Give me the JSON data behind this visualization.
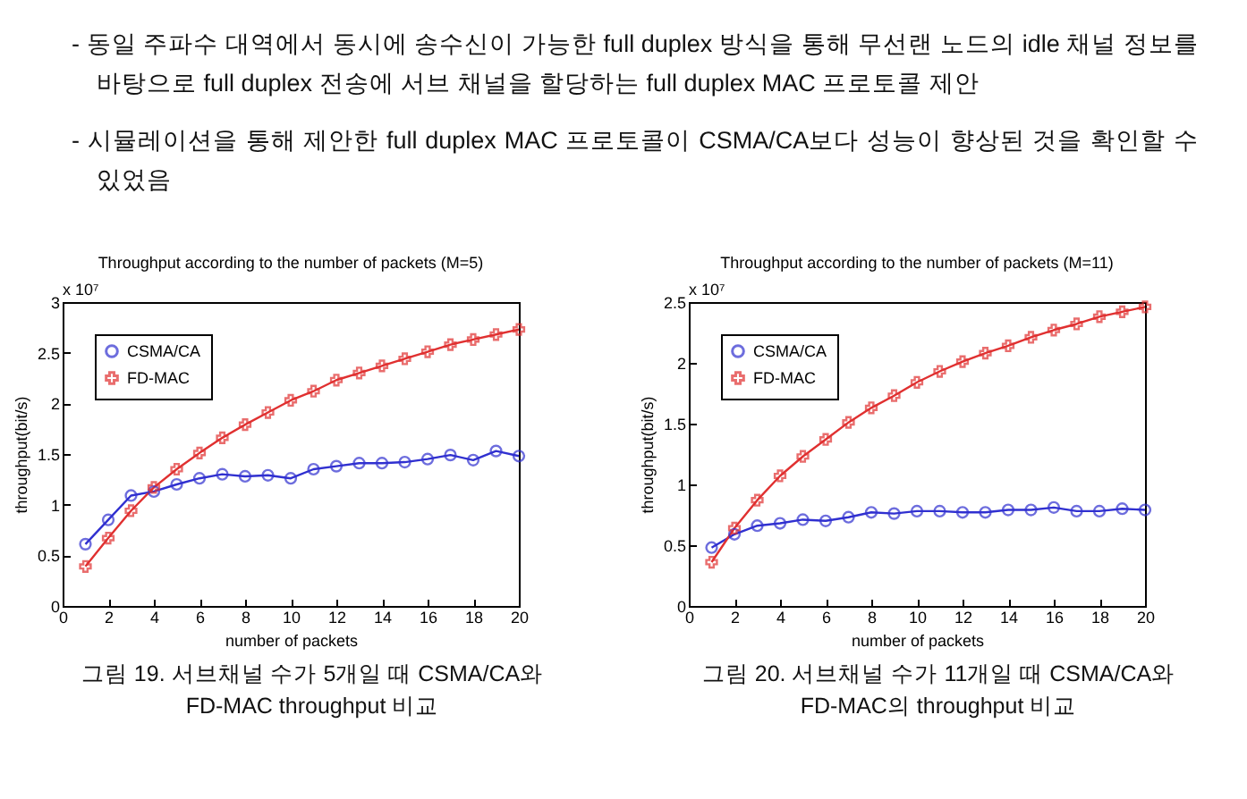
{
  "chart_data": [
    {
      "type": "line",
      "title": "Throughput according to the number of packets (M=5)",
      "xlabel": "number of packets",
      "ylabel": "throughput(bit/s)",
      "annotations": [
        "x 10⁷",
        "- 동일 주파수 대역에서 동시에 송수신이 가능한 full duplex 방식을 통해 무선랜 노드의 idle 채널 정보를 바탕으로 full duplex 전송에 서브 채널을 할당하는 full duplex MAC 프로토콜 제안",
        "- 시뮬레이션을 통해 제안한 full duplex MAC 프로토콜이 CSMA/CA보다 성능이 향상된 것을 확인할 수 있었음",
        "그림 19. 서브채널 수가 5개일 때 CSMA/CA와 FD-MAC throughput 비교"
      ],
      "x": [
        1,
        2,
        3,
        4,
        5,
        6,
        7,
        8,
        9,
        10,
        11,
        12,
        13,
        14,
        15,
        16,
        17,
        18,
        19,
        20
      ],
      "series": [
        {
          "name": "CSMA/CA",
          "color": "#3030d0",
          "marker": "circle",
          "values": [
            0.61,
            0.85,
            1.09,
            1.13,
            1.2,
            1.26,
            1.3,
            1.28,
            1.29,
            1.26,
            1.35,
            1.38,
            1.41,
            1.41,
            1.42,
            1.45,
            1.49,
            1.44,
            1.53,
            1.48
          ]
        },
        {
          "name": "FD-MAC",
          "color": "#e03030",
          "marker": "cross",
          "values": [
            0.39,
            0.67,
            0.94,
            1.17,
            1.35,
            1.51,
            1.66,
            1.79,
            1.91,
            2.03,
            2.12,
            2.23,
            2.3,
            2.37,
            2.44,
            2.51,
            2.58,
            2.63,
            2.68,
            2.73
          ]
        }
      ],
      "xlim": [
        0,
        20
      ],
      "xticks": [
        0,
        2,
        4,
        6,
        8,
        10,
        12,
        14,
        16,
        18,
        20
      ],
      "ylim": [
        0,
        3
      ],
      "yticks": [
        0,
        0.5,
        1,
        1.5,
        2,
        2.5,
        3
      ],
      "grid": false,
      "legend": "top left"
    },
    {
      "type": "line",
      "title": "Throughput according to the number of packets (M=11)",
      "xlabel": "number of packets",
      "ylabel": "throughput(bit/s)",
      "annotations": [
        "x 10⁷",
        "그림 20. 서브채널 수가 11개일 때 CSMA/CA와 FD-MAC의 throughput 비교"
      ],
      "x": [
        1,
        2,
        3,
        4,
        5,
        6,
        7,
        8,
        9,
        10,
        11,
        12,
        13,
        14,
        15,
        16,
        17,
        18,
        19,
        20
      ],
      "series": [
        {
          "name": "CSMA/CA",
          "color": "#3030d0",
          "marker": "circle",
          "values": [
            0.48,
            0.59,
            0.66,
            0.68,
            0.71,
            0.7,
            0.73,
            0.77,
            0.76,
            0.78,
            0.78,
            0.77,
            0.77,
            0.79,
            0.79,
            0.81,
            0.78,
            0.78,
            0.8,
            0.79
          ]
        },
        {
          "name": "FD-MAC",
          "color": "#e03030",
          "marker": "cross",
          "values": [
            0.36,
            0.64,
            0.87,
            1.07,
            1.23,
            1.37,
            1.51,
            1.63,
            1.73,
            1.84,
            1.93,
            2.01,
            2.08,
            2.14,
            2.21,
            2.27,
            2.32,
            2.38,
            2.42,
            2.46
          ]
        }
      ],
      "xlim": [
        0,
        20
      ],
      "xticks": [
        0,
        2,
        4,
        6,
        8,
        10,
        12,
        14,
        16,
        18,
        20
      ],
      "ylim": [
        0,
        2.5
      ],
      "yticks": [
        0,
        0.5,
        1,
        1.5,
        2,
        2.5
      ],
      "grid": false,
      "legend": "top left"
    }
  ]
}
